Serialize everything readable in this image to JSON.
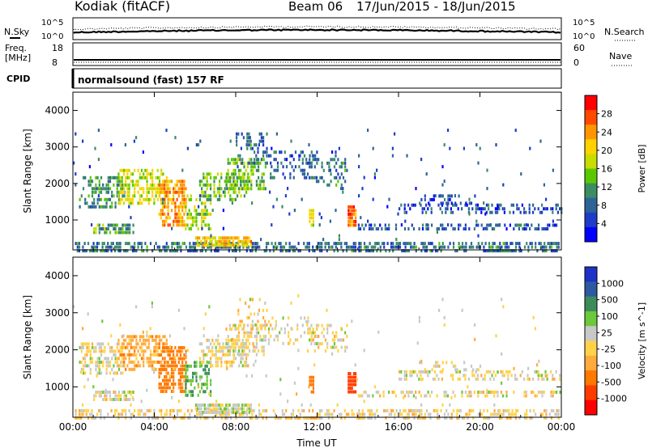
{
  "header": {
    "station": "Kodiak (fitACF)",
    "beam": "Beam 06",
    "dates": "17/Jun/2015 - 18/Jun/2015"
  },
  "summary": {
    "nsky_label": "N.Sky",
    "nsearch_label": "N.Search",
    "freq_label_1": "Freq.",
    "freq_label_2": "[MHz]",
    "nave_label": "Nave",
    "cpid_label": "CPID",
    "cpid_text": "normalsound (fast) 157 RF",
    "count_ticks_left": [
      "10^5",
      "10^0"
    ],
    "count_ticks_right": [
      "10^5",
      "10^0"
    ],
    "freq_ticks": [
      "18",
      "8"
    ],
    "nave_ticks": [
      "60",
      "0"
    ]
  },
  "axes": {
    "xlabel": "Time UT",
    "ylabel": "Slant Range [km]"
  },
  "chart_data": [
    {
      "type": "heatmap",
      "name": "power",
      "colorbar_label": "Power [dB]",
      "colorbar_ticks": [
        "28",
        "24",
        "20",
        "16",
        "12",
        "8",
        "4"
      ],
      "colorbar_colors": [
        "#ff0000",
        "#ff4a00",
        "#ff9600",
        "#ffd200",
        "#c8dc00",
        "#5ac800",
        "#3c8c64",
        "#2d6496",
        "#1e3cc8",
        "#0000ff"
      ],
      "x_ticks": [
        "00:00",
        "04:00",
        "08:00",
        "12:00",
        "16:00",
        "20:00",
        "00:00"
      ],
      "xlim": [
        0,
        24
      ],
      "y_ticks": [
        "1000",
        "2000",
        "3000",
        "4000"
      ],
      "ylim": [
        180,
        4500
      ],
      "regions": [
        {
          "t0": 0.1,
          "t1": 23.9,
          "r0": 200,
          "r1": 400,
          "p": 8,
          "d": 0.55
        },
        {
          "t0": 1.0,
          "t1": 3.0,
          "r0": 650,
          "r1": 900,
          "p": 12,
          "d": 0.7
        },
        {
          "t0": 0.3,
          "t1": 2.5,
          "r0": 1400,
          "r1": 2200,
          "p": 10,
          "d": 0.45
        },
        {
          "t0": 2.2,
          "t1": 4.6,
          "r0": 1500,
          "r1": 2400,
          "p": 18,
          "d": 0.55
        },
        {
          "t0": 4.2,
          "t1": 5.6,
          "r0": 900,
          "r1": 2100,
          "p": 24,
          "d": 0.65
        },
        {
          "t0": 5.5,
          "t1": 6.8,
          "r0": 800,
          "r1": 1700,
          "p": 16,
          "d": 0.45
        },
        {
          "t0": 6.0,
          "t1": 8.8,
          "r0": 350,
          "r1": 550,
          "p": 22,
          "d": 0.8
        },
        {
          "t0": 6.2,
          "t1": 8.6,
          "r0": 1600,
          "r1": 2300,
          "p": 14,
          "d": 0.5
        },
        {
          "t0": 7.5,
          "t1": 9.5,
          "r0": 1900,
          "r1": 2700,
          "p": 14,
          "d": 0.45
        },
        {
          "t0": 8.0,
          "t1": 9.5,
          "r0": 2600,
          "r1": 3400,
          "p": 8,
          "d": 0.3
        },
        {
          "t0": 9.5,
          "t1": 12.0,
          "r0": 2200,
          "r1": 2900,
          "p": 6,
          "d": 0.25
        },
        {
          "t0": 11.5,
          "t1": 13.5,
          "r0": 2000,
          "r1": 2700,
          "p": 9,
          "d": 0.35
        },
        {
          "t0": 11.6,
          "t1": 11.8,
          "r0": 900,
          "r1": 1300,
          "p": 18,
          "d": 0.9
        },
        {
          "t0": 13.5,
          "t1": 13.9,
          "r0": 900,
          "r1": 1400,
          "p": 26,
          "d": 0.9
        },
        {
          "t0": 14.0,
          "t1": 24.0,
          "r0": 800,
          "r1": 900,
          "p": 6,
          "d": 0.4
        },
        {
          "t0": 16.0,
          "t1": 24.0,
          "r0": 1200,
          "r1": 1450,
          "p": 5,
          "d": 0.35
        },
        {
          "t0": 17.0,
          "t1": 20.0,
          "r0": 1500,
          "r1": 1700,
          "p": 5,
          "d": 0.25
        },
        {
          "t0": 0.0,
          "t1": 24.0,
          "r0": 500,
          "r1": 3500,
          "p": 6,
          "d": 0.015
        }
      ]
    },
    {
      "type": "heatmap",
      "name": "velocity",
      "colorbar_label": "Velocity [m s^-1]",
      "colorbar_ticks": [
        "1000",
        "500",
        "100",
        "25",
        "-25",
        "-100",
        "-500",
        "-1000"
      ],
      "colorbar_colors": [
        "#1e32c8",
        "#2d5aa0",
        "#3c8c5a",
        "#6cc83c",
        "#c8c8c8",
        "#ffd24a",
        "#ffaa3c",
        "#ff7800",
        "#ff3c00",
        "#ff0000"
      ],
      "x_ticks": [
        "00:00",
        "04:00",
        "08:00",
        "12:00",
        "16:00",
        "20:00",
        "00:00"
      ],
      "xlim": [
        0,
        24
      ],
      "y_ticks": [
        "1000",
        "2000",
        "3000",
        "4000"
      ],
      "ylim": [
        180,
        4500
      ],
      "regions": [
        {
          "t0": 0.1,
          "t1": 23.9,
          "r0": 200,
          "r1": 400,
          "v": -20,
          "d": 0.45
        },
        {
          "t0": 1.0,
          "t1": 3.0,
          "r0": 650,
          "r1": 900,
          "v": 10,
          "d": 0.7
        },
        {
          "t0": 0.3,
          "t1": 2.5,
          "r0": 1400,
          "r1": 2200,
          "v": 0,
          "d": 0.45
        },
        {
          "t0": 2.2,
          "t1": 4.6,
          "r0": 1500,
          "r1": 2400,
          "v": -120,
          "d": 0.55
        },
        {
          "t0": 4.2,
          "t1": 5.6,
          "r0": 900,
          "r1": 2100,
          "v": -250,
          "d": 0.65
        },
        {
          "t0": 5.5,
          "t1": 6.8,
          "r0": 800,
          "r1": 1700,
          "v": 150,
          "d": 0.45
        },
        {
          "t0": 6.0,
          "t1": 8.8,
          "r0": 350,
          "r1": 550,
          "v": 60,
          "d": 0.8
        },
        {
          "t0": 6.2,
          "t1": 8.6,
          "r0": 1600,
          "r1": 2300,
          "v": 0,
          "d": 0.5
        },
        {
          "t0": 7.5,
          "t1": 9.5,
          "r0": 1900,
          "r1": 2700,
          "v": 0,
          "d": 0.45
        },
        {
          "t0": 8.0,
          "t1": 9.5,
          "r0": 2600,
          "r1": 3400,
          "v": -60,
          "d": 0.3
        },
        {
          "t0": 9.5,
          "t1": 12.0,
          "r0": 2200,
          "r1": 2900,
          "v": 0,
          "d": 0.25
        },
        {
          "t0": 11.5,
          "t1": 13.5,
          "r0": 2000,
          "r1": 2700,
          "v": 0,
          "d": 0.35
        },
        {
          "t0": 11.6,
          "t1": 11.8,
          "r0": 900,
          "r1": 1300,
          "v": -300,
          "d": 0.9
        },
        {
          "t0": 13.5,
          "t1": 13.9,
          "r0": 900,
          "r1": 1400,
          "v": -600,
          "d": 0.9
        },
        {
          "t0": 14.0,
          "t1": 24.0,
          "r0": 800,
          "r1": 900,
          "v": 0,
          "d": 0.4
        },
        {
          "t0": 16.0,
          "t1": 24.0,
          "r0": 1200,
          "r1": 1450,
          "v": 0,
          "d": 0.35
        },
        {
          "t0": 17.0,
          "t1": 20.0,
          "r0": 1500,
          "r1": 1700,
          "v": 0,
          "d": 0.25
        },
        {
          "t0": 0.0,
          "t1": 24.0,
          "r0": 500,
          "r1": 3500,
          "v": 0,
          "d": 0.015
        }
      ]
    }
  ]
}
